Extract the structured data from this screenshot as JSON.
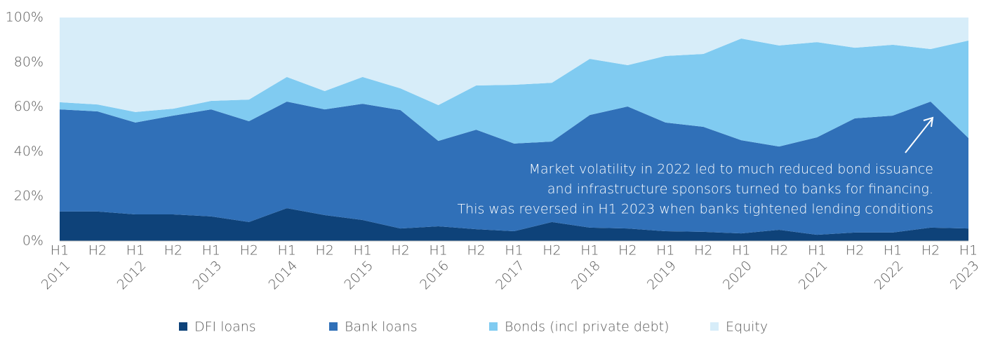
{
  "chart_data": {
    "type": "stacked_area",
    "categories": [
      "H1",
      "H2",
      "H1",
      "H2",
      "H1",
      "H2",
      "H1",
      "H2",
      "H1",
      "H2",
      "H1",
      "H2",
      "H1",
      "H2",
      "H1",
      "H2",
      "H1",
      "H2",
      "H1",
      "H2",
      "H1",
      "H2",
      "H1",
      "H2",
      "H1"
    ],
    "years": [
      "2011",
      null,
      "2012",
      null,
      "2013",
      null,
      "2014",
      null,
      "2015",
      null,
      "2016",
      null,
      "2017",
      null,
      "2018",
      null,
      "2019",
      null,
      "2020",
      null,
      "2021",
      null,
      "2022",
      null,
      "2023"
    ],
    "series": [
      {
        "name": "DFI loans",
        "color": "#0e4279",
        "values": [
          13.2,
          13.2,
          11.9,
          11.9,
          11,
          8.5,
          14.7,
          11.6,
          9.4,
          5.6,
          6.6,
          5.3,
          4.4,
          8.5,
          6,
          5.6,
          4.4,
          4.1,
          3.4,
          5,
          2.8,
          3.8,
          3.8,
          6,
          5.6
        ]
      },
      {
        "name": "Bank loans",
        "color": "#3070b8",
        "values": [
          45.7,
          44.8,
          41.1,
          44.2,
          47.9,
          45.1,
          47.7,
          47.3,
          52,
          53,
          38.2,
          44.5,
          39.2,
          36,
          50.4,
          54.6,
          48.6,
          47,
          41.7,
          37.3,
          43.6,
          51.1,
          52.3,
          56.4,
          40.5
        ]
      },
      {
        "name": "Bonds (incl private debt)",
        "color": "#80cbf1",
        "values": [
          3.2,
          3.1,
          4.7,
          3.1,
          3.8,
          9.7,
          11,
          8.2,
          12,
          9.7,
          16,
          19.8,
          26.3,
          26.3,
          25.1,
          18.5,
          29.8,
          32.6,
          45.5,
          45.2,
          42.6,
          31.6,
          31.7,
          23.5,
          43.6
        ]
      },
      {
        "name": "Equity",
        "color": "#d7edf9",
        "values": [
          37.9,
          38.9,
          42.3,
          40.8,
          37.3,
          36.7,
          26.6,
          32.9,
          26.6,
          31.7,
          39.2,
          30.4,
          30.1,
          29.2,
          18.5,
          21.3,
          17.2,
          16.3,
          9.4,
          12.5,
          11,
          13.5,
          12.2,
          14.1,
          10.3
        ]
      }
    ],
    "ylim": [
      0,
      100
    ],
    "yticks": [
      {
        "value": 0,
        "label": "0%"
      },
      {
        "value": 20,
        "label": "20%"
      },
      {
        "value": 40,
        "label": "40%"
      },
      {
        "value": 60,
        "label": "60%"
      },
      {
        "value": 80,
        "label": "80%"
      },
      {
        "value": 100,
        "label": "100%"
      }
    ],
    "annotation": [
      "Market volatility in 2022 led to much reduced bond issuance",
      "and infrastructure sponsors turned to banks for financing.",
      "This was reversed in H1 2023 when banks tightened lending conditions"
    ],
    "legend": "bottom"
  }
}
